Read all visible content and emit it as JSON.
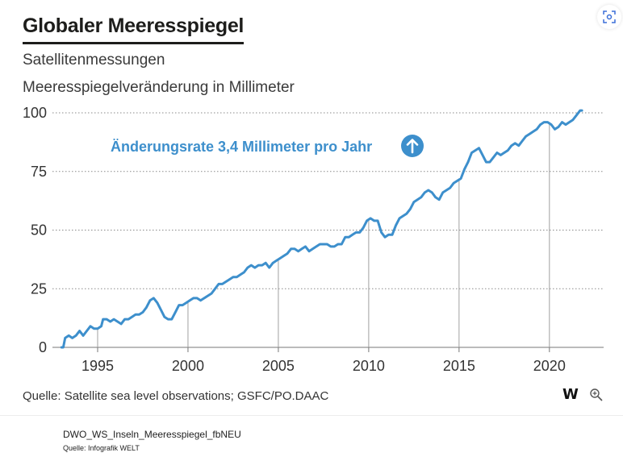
{
  "chart_data": {
    "type": "line",
    "title": "Globaler Meeresspiegel",
    "subtitle": "Satellitenmessungen",
    "ylabel": "Meeresspiegelveränderung in Millimeter",
    "xlabel": "",
    "xlim": [
      1992.5,
      2023.0
    ],
    "ylim": [
      0,
      100
    ],
    "x_ticks": [
      "1995",
      "2000",
      "2005",
      "2010",
      "2015",
      "2020"
    ],
    "y_ticks": [
      "0",
      "25",
      "50",
      "75",
      "100"
    ],
    "grid": "horizontal dotted lines at y ticks",
    "annotation": {
      "text": "Änderungsrate 3,4 Millimeter pro Jahr",
      "icon": "arrow-up-circle-icon",
      "color": "#3d8fcc"
    },
    "line_color": "#3d8fcc",
    "series": [
      {
        "values": [
          [
            1993.0,
            0
          ],
          [
            1993.1,
            0
          ],
          [
            1993.2,
            4
          ],
          [
            1993.4,
            5
          ],
          [
            1993.6,
            4
          ],
          [
            1993.8,
            5
          ],
          [
            1994.0,
            7
          ],
          [
            1994.2,
            5
          ],
          [
            1994.4,
            7
          ],
          [
            1994.6,
            9
          ],
          [
            1994.8,
            8
          ],
          [
            1995.0,
            8
          ],
          [
            1995.2,
            9
          ],
          [
            1995.3,
            12
          ],
          [
            1995.5,
            12
          ],
          [
            1995.7,
            11
          ],
          [
            1995.9,
            12
          ],
          [
            1996.1,
            11
          ],
          [
            1996.3,
            10
          ],
          [
            1996.5,
            12
          ],
          [
            1996.7,
            12
          ],
          [
            1996.9,
            13
          ],
          [
            1997.1,
            14
          ],
          [
            1997.3,
            14
          ],
          [
            1997.5,
            15
          ],
          [
            1997.7,
            17
          ],
          [
            1997.9,
            20
          ],
          [
            1998.1,
            21
          ],
          [
            1998.3,
            19
          ],
          [
            1998.5,
            16
          ],
          [
            1998.7,
            13
          ],
          [
            1998.9,
            12
          ],
          [
            1999.1,
            12
          ],
          [
            1999.3,
            15
          ],
          [
            1999.5,
            18
          ],
          [
            1999.7,
            18
          ],
          [
            1999.9,
            19
          ],
          [
            2000.1,
            20
          ],
          [
            2000.3,
            21
          ],
          [
            2000.5,
            21
          ],
          [
            2000.7,
            20
          ],
          [
            2000.9,
            21
          ],
          [
            2001.1,
            22
          ],
          [
            2001.3,
            23
          ],
          [
            2001.5,
            25
          ],
          [
            2001.7,
            27
          ],
          [
            2001.9,
            27
          ],
          [
            2002.1,
            28
          ],
          [
            2002.3,
            29
          ],
          [
            2002.5,
            30
          ],
          [
            2002.7,
            30
          ],
          [
            2002.9,
            31
          ],
          [
            2003.1,
            32
          ],
          [
            2003.3,
            34
          ],
          [
            2003.5,
            35
          ],
          [
            2003.7,
            34
          ],
          [
            2003.9,
            35
          ],
          [
            2004.1,
            35
          ],
          [
            2004.3,
            36
          ],
          [
            2004.5,
            34
          ],
          [
            2004.7,
            36
          ],
          [
            2004.9,
            37
          ],
          [
            2005.1,
            38
          ],
          [
            2005.3,
            39
          ],
          [
            2005.5,
            40
          ],
          [
            2005.7,
            42
          ],
          [
            2005.9,
            42
          ],
          [
            2006.1,
            41
          ],
          [
            2006.3,
            42
          ],
          [
            2006.5,
            43
          ],
          [
            2006.7,
            41
          ],
          [
            2006.9,
            42
          ],
          [
            2007.1,
            43
          ],
          [
            2007.3,
            44
          ],
          [
            2007.5,
            44
          ],
          [
            2007.7,
            44
          ],
          [
            2007.9,
            43
          ],
          [
            2008.1,
            43
          ],
          [
            2008.3,
            44
          ],
          [
            2008.5,
            44
          ],
          [
            2008.7,
            47
          ],
          [
            2008.9,
            47
          ],
          [
            2009.1,
            48
          ],
          [
            2009.3,
            49
          ],
          [
            2009.5,
            49
          ],
          [
            2009.7,
            51
          ],
          [
            2009.9,
            54
          ],
          [
            2010.1,
            55
          ],
          [
            2010.3,
            54
          ],
          [
            2010.5,
            54
          ],
          [
            2010.7,
            49
          ],
          [
            2010.9,
            47
          ],
          [
            2011.1,
            48
          ],
          [
            2011.3,
            48
          ],
          [
            2011.5,
            52
          ],
          [
            2011.7,
            55
          ],
          [
            2011.9,
            56
          ],
          [
            2012.1,
            57
          ],
          [
            2012.3,
            59
          ],
          [
            2012.5,
            62
          ],
          [
            2012.7,
            63
          ],
          [
            2012.9,
            64
          ],
          [
            2013.1,
            66
          ],
          [
            2013.3,
            67
          ],
          [
            2013.5,
            66
          ],
          [
            2013.7,
            64
          ],
          [
            2013.9,
            63
          ],
          [
            2014.1,
            66
          ],
          [
            2014.3,
            67
          ],
          [
            2014.5,
            68
          ],
          [
            2014.7,
            70
          ],
          [
            2014.9,
            71
          ],
          [
            2015.1,
            72
          ],
          [
            2015.3,
            76
          ],
          [
            2015.5,
            79
          ],
          [
            2015.7,
            83
          ],
          [
            2015.9,
            84
          ],
          [
            2016.1,
            85
          ],
          [
            2016.3,
            82
          ],
          [
            2016.5,
            79
          ],
          [
            2016.7,
            79
          ],
          [
            2016.9,
            81
          ],
          [
            2017.1,
            83
          ],
          [
            2017.3,
            82
          ],
          [
            2017.5,
            83
          ],
          [
            2017.7,
            84
          ],
          [
            2017.9,
            86
          ],
          [
            2018.1,
            87
          ],
          [
            2018.3,
            86
          ],
          [
            2018.5,
            88
          ],
          [
            2018.7,
            90
          ],
          [
            2018.9,
            91
          ],
          [
            2019.1,
            92
          ],
          [
            2019.3,
            93
          ],
          [
            2019.5,
            95
          ],
          [
            2019.7,
            96
          ],
          [
            2019.9,
            96
          ],
          [
            2020.1,
            95
          ],
          [
            2020.3,
            93
          ],
          [
            2020.5,
            94
          ],
          [
            2020.7,
            96
          ],
          [
            2020.9,
            95
          ],
          [
            2021.1,
            96
          ],
          [
            2021.3,
            97
          ],
          [
            2021.5,
            99
          ],
          [
            2021.7,
            101
          ],
          [
            2021.8,
            101
          ]
        ]
      }
    ],
    "source": "Quelle: Satellite sea level observations; GSFC/PO.DAAC",
    "brand": "W"
  },
  "footer": {
    "file_name": "DWO_WS_Inseln_Meeresspiegel_fbNEU",
    "credit": "Quelle: Infografik WELT"
  },
  "icons": {
    "zoom": "zoom-in-icon",
    "corner": "lens-scan-icon"
  },
  "colors": {
    "line": "#3d8fcc",
    "text": "#1d1d1b",
    "grid": "#999999"
  }
}
